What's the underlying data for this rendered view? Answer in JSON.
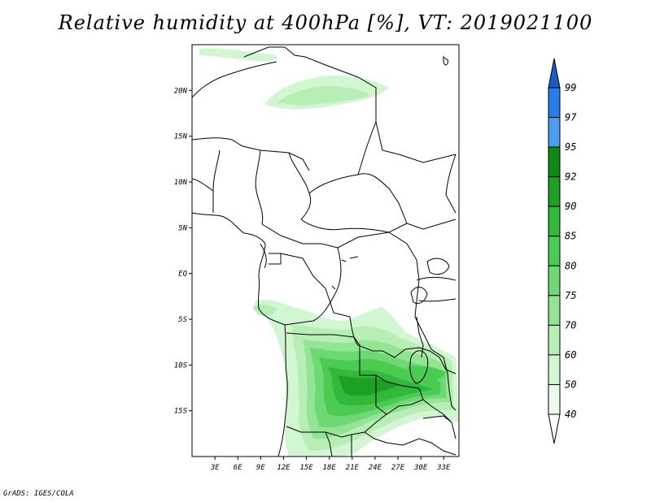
{
  "title": "Relative humidity at 400hPa [%], VT: 2019021100",
  "credit": "GrADS: IGES/COLA",
  "map": {
    "lon_ticks": [
      "3E",
      "6E",
      "9E",
      "12E",
      "15E",
      "18E",
      "21E",
      "24E",
      "27E",
      "30E",
      "33E"
    ],
    "lat_ticks": [
      "20N",
      "15N",
      "10N",
      "5N",
      "EQ",
      "5S",
      "10S",
      "15S"
    ],
    "lon_range": [
      0,
      35
    ],
    "lat_range": [
      -20,
      25
    ]
  },
  "colorbar": {
    "levels": [
      "99",
      "97",
      "95",
      "92",
      "90",
      "85",
      "80",
      "75",
      "70",
      "60",
      "50",
      "40"
    ],
    "colors": [
      "#1e5fd0",
      "#2a7de8",
      "#4a9ef0",
      "#0f8a14",
      "#1ea024",
      "#32b83a",
      "#4ccb52",
      "#6ed874",
      "#94e496",
      "#b6eeb6",
      "#d2f6d2",
      "#ecfcec"
    ],
    "lower_color": "#ffffff",
    "upper_color": "#1a5bc4"
  }
}
